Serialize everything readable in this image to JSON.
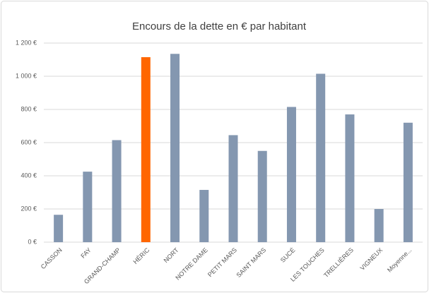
{
  "chart_data": {
    "type": "bar",
    "title": "Encours de  la dette en € par habitant",
    "categories": [
      "CASSON",
      "FAY",
      "GRAND-CHAMP",
      "HÉRIC",
      "NORT",
      "NOTRE DAME",
      "PETIT MARS",
      "SAINT MARS",
      "SUCÉ",
      "LES TOUCHES",
      "TRELLIÈRES",
      "VIGNEUX",
      "Moyenne..."
    ],
    "values": [
      165,
      425,
      615,
      1115,
      1135,
      315,
      645,
      550,
      815,
      1015,
      770,
      200,
      720
    ],
    "colors": [
      "#8497b0",
      "#8497b0",
      "#8497b0",
      "#ff6600",
      "#8497b0",
      "#8497b0",
      "#8497b0",
      "#8497b0",
      "#8497b0",
      "#8497b0",
      "#8497b0",
      "#8497b0",
      "#8497b0"
    ],
    "ylim": [
      0,
      1200
    ],
    "yticks": [
      {
        "value": 0,
        "label": "0 €"
      },
      {
        "value": 200,
        "label": "200 €"
      },
      {
        "value": 400,
        "label": "400 €"
      },
      {
        "value": 600,
        "label": "600 €"
      },
      {
        "value": 800,
        "label": "800 €"
      },
      {
        "value": 1000,
        "label": "1 000 €"
      },
      {
        "value": 1200,
        "label": "1 200 €"
      }
    ],
    "grid": true
  }
}
